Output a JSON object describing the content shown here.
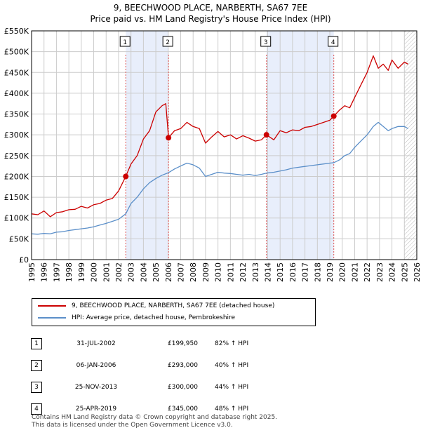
{
  "title": "9, BEECHWOOD PLACE, NARBERTH, SA67 7EE",
  "subtitle": "Price paid vs. HM Land Registry's House Price Index (HPI)",
  "legend": {
    "property": "9, BEECHWOOD PLACE, NARBERTH, SA67 7EE (detached house)",
    "hpi": "HPI: Average price, detached house, Pembrokeshire"
  },
  "sales": [
    {
      "num": "1",
      "date": "31-JUL-2002",
      "price": "£199,950",
      "hpi": "82% ↑ HPI"
    },
    {
      "num": "2",
      "date": "06-JAN-2006",
      "price": "£293,000",
      "hpi": "40% ↑ HPI"
    },
    {
      "num": "3",
      "date": "25-NOV-2013",
      "price": "£300,000",
      "hpi": "44% ↑ HPI"
    },
    {
      "num": "4",
      "date": "25-APR-2019",
      "price": "£345,000",
      "hpi": "48% ↑ HPI"
    }
  ],
  "footer": {
    "line1": "Contains HM Land Registry data © Crown copyright and database right 2025.",
    "line2": "This data is licensed under the Open Government Licence v3.0."
  },
  "colors": {
    "property_line": "#cc0000",
    "hpi_line": "#5b8fc9",
    "shade": "#e8eefb",
    "sale_vline": "#e05555",
    "grid": "#cccccc"
  },
  "chart_data": {
    "type": "line",
    "title": "9, BEECHWOOD PLACE, NARBERTH, SA67 7EE",
    "xlabel": "",
    "ylabel": "",
    "xlim": [
      1995,
      2026
    ],
    "ylim": [
      0,
      550000
    ],
    "x_ticks": [
      1995,
      1996,
      1997,
      1998,
      1999,
      2000,
      2001,
      2002,
      2003,
      2004,
      2005,
      2006,
      2007,
      2008,
      2009,
      2010,
      2011,
      2012,
      2013,
      2014,
      2015,
      2016,
      2017,
      2018,
      2019,
      2020,
      2021,
      2022,
      2023,
      2024,
      2025,
      2026
    ],
    "y_ticks": [
      0,
      50000,
      100000,
      150000,
      200000,
      250000,
      300000,
      350000,
      400000,
      450000,
      500000,
      550000
    ],
    "y_tick_labels": [
      "£0",
      "£50K",
      "£100K",
      "£150K",
      "£200K",
      "£250K",
      "£300K",
      "£350K",
      "£400K",
      "£450K",
      "£500K",
      "£550K"
    ],
    "shaded_ranges": [
      [
        2002.58,
        2006.02
      ],
      [
        2013.9,
        2019.32
      ]
    ],
    "future_hatch_from": 2025.0,
    "sale_markers": [
      {
        "label": "1",
        "x": 2002.58,
        "y": 199950
      },
      {
        "label": "2",
        "x": 2006.02,
        "y": 293000
      },
      {
        "label": "3",
        "x": 2013.9,
        "y": 300000
      },
      {
        "label": "4",
        "x": 2019.32,
        "y": 345000
      }
    ],
    "series": [
      {
        "name": "9, BEECHWOOD PLACE, NARBERTH, SA67 7EE (detached house)",
        "x": [
          1995.0,
          1995.5,
          1996.0,
          1996.5,
          1997.0,
          1997.5,
          1998.0,
          1998.5,
          1999.0,
          1999.5,
          2000.0,
          2000.5,
          2001.0,
          2001.5,
          2002.0,
          2002.58,
          2003.0,
          2003.5,
          2004.0,
          2004.5,
          2005.0,
          2005.5,
          2005.8,
          2006.02,
          2006.5,
          2007.0,
          2007.5,
          2008.0,
          2008.5,
          2009.0,
          2009.5,
          2010.0,
          2010.5,
          2011.0,
          2011.5,
          2012.0,
          2012.5,
          2013.0,
          2013.5,
          2013.9,
          2014.5,
          2015.0,
          2015.5,
          2016.0,
          2016.5,
          2017.0,
          2017.5,
          2018.0,
          2018.5,
          2019.0,
          2019.32,
          2019.8,
          2020.2,
          2020.6,
          2021.0,
          2021.5,
          2022.0,
          2022.5,
          2022.9,
          2023.3,
          2023.7,
          2024.0,
          2024.5,
          2025.0,
          2025.3
        ],
        "values": [
          110000,
          108000,
          117000,
          103000,
          113000,
          115000,
          120000,
          121000,
          128000,
          124000,
          132000,
          135000,
          143000,
          147000,
          165000,
          199950,
          230000,
          250000,
          290000,
          310000,
          355000,
          370000,
          375000,
          293000,
          310000,
          315000,
          330000,
          320000,
          315000,
          280000,
          295000,
          308000,
          295000,
          300000,
          290000,
          298000,
          292000,
          285000,
          288000,
          300000,
          288000,
          310000,
          305000,
          312000,
          310000,
          318000,
          320000,
          325000,
          330000,
          335000,
          345000,
          360000,
          370000,
          365000,
          390000,
          420000,
          450000,
          490000,
          460000,
          470000,
          455000,
          480000,
          460000,
          475000,
          470000
        ]
      },
      {
        "name": "HPI: Average price, detached house, Pembrokeshire",
        "x": [
          1995.0,
          1995.5,
          1996.0,
          1996.5,
          1997.0,
          1997.5,
          1998.0,
          1998.5,
          1999.0,
          1999.5,
          2000.0,
          2000.5,
          2001.0,
          2001.5,
          2002.0,
          2002.58,
          2003.0,
          2003.5,
          2004.0,
          2004.5,
          2005.0,
          2005.5,
          2006.02,
          2006.5,
          2007.0,
          2007.5,
          2008.0,
          2008.5,
          2009.0,
          2009.5,
          2010.0,
          2010.5,
          2011.0,
          2011.5,
          2012.0,
          2012.5,
          2013.0,
          2013.5,
          2013.9,
          2014.5,
          2015.0,
          2015.5,
          2016.0,
          2016.5,
          2017.0,
          2017.5,
          2018.0,
          2018.5,
          2019.0,
          2019.32,
          2019.8,
          2020.2,
          2020.6,
          2021.0,
          2021.5,
          2022.0,
          2022.5,
          2022.9,
          2023.3,
          2023.7,
          2024.0,
          2024.5,
          2025.0,
          2025.3
        ],
        "values": [
          62000,
          61000,
          63000,
          62000,
          66000,
          67000,
          70000,
          72000,
          74000,
          76000,
          79000,
          83000,
          87000,
          92000,
          97000,
          110000,
          135000,
          150000,
          170000,
          185000,
          195000,
          203000,
          209000,
          218000,
          225000,
          232000,
          228000,
          220000,
          200000,
          205000,
          210000,
          208000,
          207000,
          205000,
          203000,
          205000,
          202000,
          205000,
          208000,
          210000,
          213000,
          216000,
          220000,
          222000,
          224000,
          226000,
          228000,
          230000,
          232000,
          233000,
          240000,
          250000,
          255000,
          270000,
          285000,
          300000,
          320000,
          330000,
          320000,
          310000,
          315000,
          320000,
          320000,
          315000
        ]
      }
    ]
  }
}
